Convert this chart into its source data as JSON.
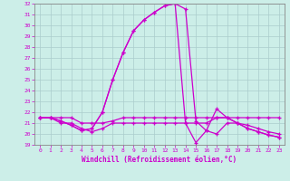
{
  "xlabel": "Windchill (Refroidissement éolien,°C)",
  "xlim": [
    -0.5,
    23.5
  ],
  "ylim": [
    19,
    32
  ],
  "yticks": [
    19,
    20,
    21,
    22,
    23,
    24,
    25,
    26,
    27,
    28,
    29,
    30,
    31,
    32
  ],
  "xticks": [
    0,
    1,
    2,
    3,
    4,
    5,
    6,
    7,
    8,
    9,
    10,
    11,
    12,
    13,
    14,
    15,
    16,
    17,
    18,
    19,
    20,
    21,
    22,
    23
  ],
  "bg_color": "#cceee8",
  "line_color": "#cc00cc",
  "grid_color": "#aacccc",
  "lines": [
    {
      "x": [
        0,
        1,
        2,
        3,
        4,
        5,
        6,
        7,
        8,
        9,
        10,
        11,
        12,
        13,
        14,
        15,
        16,
        17,
        18,
        19,
        20,
        21,
        22,
        23
      ],
      "y": [
        21.5,
        21.5,
        21.2,
        20.8,
        20.3,
        20.5,
        22.0,
        25.0,
        27.5,
        29.5,
        30.5,
        31.2,
        31.8,
        32.0,
        31.5,
        21.2,
        20.3,
        22.3,
        21.5,
        21.0,
        20.5,
        20.2,
        19.9,
        19.7
      ]
    },
    {
      "x": [
        0,
        1,
        2,
        3,
        4,
        5,
        6,
        7,
        8,
        9,
        10,
        11,
        12,
        13,
        14,
        15,
        16,
        17,
        18,
        19,
        20,
        21,
        22,
        23
      ],
      "y": [
        21.5,
        21.5,
        21.2,
        20.8,
        20.3,
        20.5,
        22.0,
        25.0,
        27.5,
        29.5,
        30.5,
        31.2,
        31.8,
        32.0,
        21.0,
        19.2,
        20.3,
        20.0,
        21.0,
        21.0,
        20.5,
        20.2,
        19.9,
        19.7
      ]
    },
    {
      "x": [
        0,
        1,
        2,
        3,
        4,
        5,
        6,
        7,
        8,
        9,
        10,
        11,
        12,
        13,
        14,
        15,
        16,
        17,
        18,
        19,
        20,
        21,
        22,
        23
      ],
      "y": [
        21.5,
        21.5,
        21.5,
        21.5,
        21.0,
        21.0,
        21.0,
        21.2,
        21.5,
        21.5,
        21.5,
        21.5,
        21.5,
        21.5,
        21.5,
        21.5,
        21.5,
        21.5,
        21.5,
        21.5,
        21.5,
        21.5,
        21.5,
        21.5
      ]
    },
    {
      "x": [
        0,
        1,
        2,
        3,
        4,
        5,
        6,
        7,
        8,
        9,
        10,
        11,
        12,
        13,
        14,
        15,
        16,
        17,
        18,
        19,
        20,
        21,
        22,
        23
      ],
      "y": [
        21.5,
        21.5,
        21.0,
        21.0,
        20.5,
        20.2,
        20.5,
        21.0,
        21.0,
        21.0,
        21.0,
        21.0,
        21.0,
        21.0,
        21.0,
        21.0,
        21.0,
        21.5,
        21.5,
        21.0,
        20.8,
        20.5,
        20.2,
        20.0
      ]
    }
  ]
}
